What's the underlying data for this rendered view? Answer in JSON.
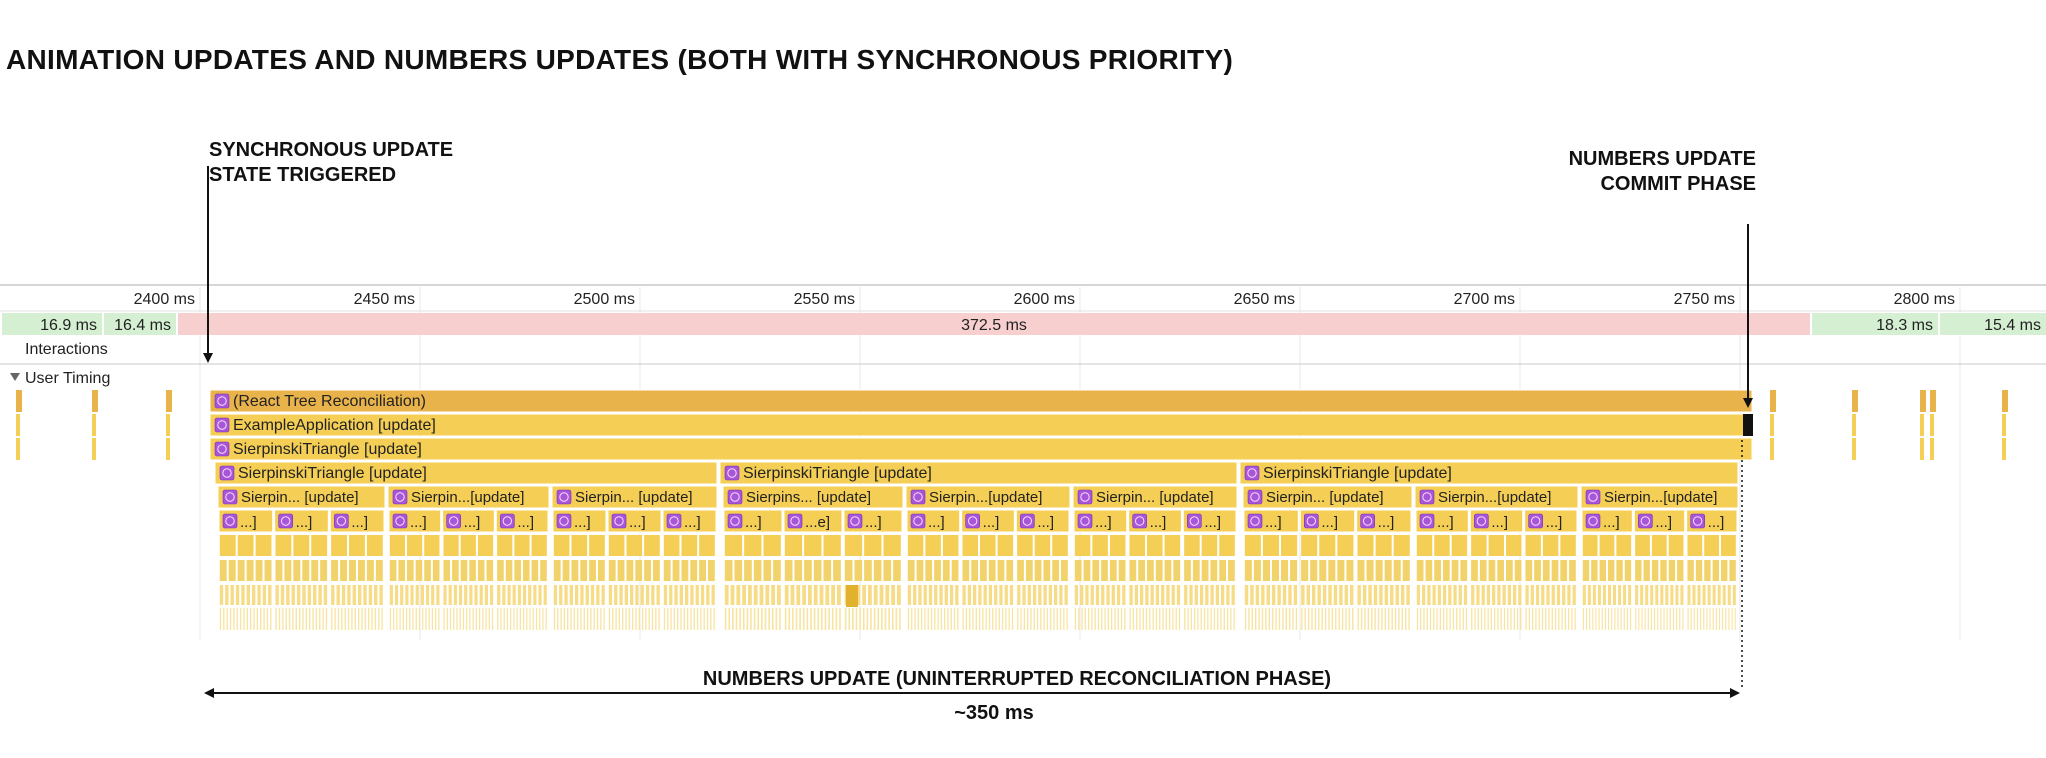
{
  "title": "ANIMATION UPDATES AND NUMBERS UPDATES (BOTH WITH SYNCHRONOUS PRIORITY)",
  "annotations": {
    "sync_update_line1": "SYNCHRONOUS UPDATE",
    "sync_update_line2": "STATE TRIGGERED",
    "commit_line1": "NUMBERS UPDATE",
    "commit_line2": "COMMIT PHASE",
    "reconciliation": "NUMBERS UPDATE (UNINTERRUPTED RECONCILIATION PHASE)",
    "duration": "~350 ms"
  },
  "timeline": {
    "ruler_ticks": [
      "2400 ms",
      "2450 ms",
      "2500 ms",
      "2550 ms",
      "2600 ms",
      "2650 ms",
      "2700 ms",
      "2750 ms",
      "2800 ms"
    ],
    "frames": [
      {
        "label": "16.9 ms",
        "status": "ok"
      },
      {
        "label": "16.4 ms",
        "status": "ok"
      },
      {
        "label": "372.5 ms",
        "status": "long"
      },
      {
        "label": "18.3 ms",
        "status": "ok"
      },
      {
        "label": "15.4 ms",
        "status": "ok"
      }
    ],
    "interactions_label": "Interactions",
    "user_timing_label": "User Timing"
  },
  "flame": {
    "row1": "(React Tree Reconciliation)",
    "row2": "ExampleApplication [update]",
    "row3": "SierpinskiTriangle [update]",
    "row4": [
      "SierpinskiTriangle [update]",
      "SierpinskiTriangle [update]",
      "SierpinskiTriangle [update]"
    ],
    "row5": [
      "Sierpin... [update]",
      "Sierpin...[update]",
      "Sierpin... [update]",
      "Sierpins... [update]",
      "Sierpin...[update]",
      "Sierpin... [update]",
      "Sierpin... [update]",
      "Sierpin...[update]",
      "Sierpin...[update]"
    ],
    "row6": [
      "...]",
      "...]",
      "...]",
      "...]",
      "...]",
      "...]",
      "...]",
      "...]",
      "...]",
      "...]",
      "...e]",
      "...]",
      "...]",
      "...]",
      "...]",
      "...]",
      "...]",
      "...]",
      "...]",
      "...]",
      "...]",
      "...]",
      "...]",
      "...]",
      "...]",
      "...]",
      "...]"
    ]
  },
  "colors": {
    "ok_frame": "#d5efd2",
    "long_frame": "#f7cfcf",
    "reconciliation": "#e8b34b",
    "update": "#f5cf55",
    "small": "#f2d26a",
    "react_icon": "#a855d8"
  }
}
